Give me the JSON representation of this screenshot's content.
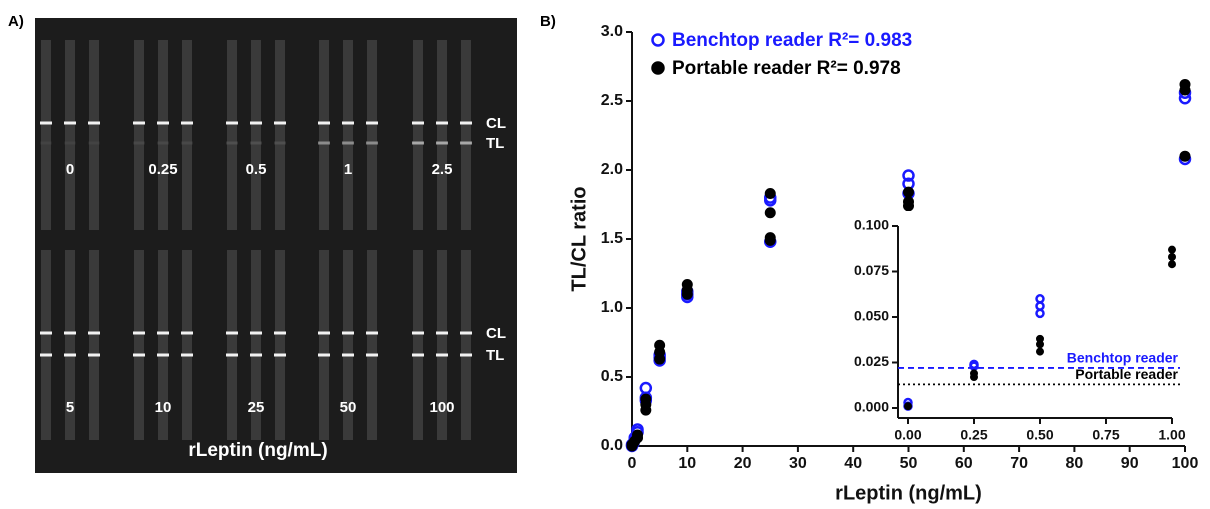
{
  "panel_a": {
    "label": "A)",
    "concentrations": [
      "0",
      "0.25",
      "0.5",
      "1",
      "2.5",
      "5",
      "10",
      "25",
      "50",
      "100"
    ],
    "line_labels": [
      [
        "CL",
        "TL"
      ],
      [
        "CL",
        "TL"
      ]
    ],
    "axis_label": "rLeptin  (ng/mL)"
  },
  "panel_b_label": "B)",
  "chart_data": [
    {
      "type": "scatter",
      "xlabel": "rLeptin (ng/mL)",
      "ylabel": "TL/CL ratio",
      "xlim": [
        0,
        100
      ],
      "xticks": [
        0,
        10,
        20,
        30,
        40,
        50,
        60,
        70,
        80,
        90,
        100
      ],
      "ylim": [
        0,
        3
      ],
      "yticks": [
        {
          "value": 0,
          "label": "0.0"
        },
        0.5,
        {
          "value": 1,
          "label": "1.0"
        },
        1.5,
        {
          "value": 2,
          "label": "2.0"
        },
        2.5,
        {
          "value": 3,
          "label": "3.0"
        }
      ],
      "legend": "upper left",
      "series": [
        {
          "name": "Benchtop reader R²= 0.983",
          "color": "#1a1aff",
          "marker": "open",
          "x": [
            0,
            0,
            0.25,
            0.5,
            0.5,
            1,
            1,
            2.5,
            2.5,
            2.5,
            5,
            5,
            5,
            10,
            10,
            10,
            25,
            25,
            25,
            50,
            50,
            50,
            100,
            100,
            100
          ],
          "values": [
            0,
            0.01,
            0.02,
            0.06,
            0.05,
            0.1,
            0.12,
            0.42,
            0.35,
            0.33,
            0.66,
            0.64,
            0.62,
            1.1,
            1.08,
            1.12,
            1.8,
            1.78,
            1.48,
            1.96,
            1.9,
            1.83,
            2.56,
            2.52,
            2.08
          ]
        },
        {
          "name": "Portable reader R²= 0.978",
          "color": "#000000",
          "marker": "filled",
          "x": [
            0,
            0,
            0.25,
            0.5,
            1,
            1,
            2.5,
            2.5,
            2.5,
            5,
            5,
            5,
            10,
            10,
            10,
            25,
            25,
            25,
            25,
            50,
            50,
            50,
            100,
            100,
            100
          ],
          "values": [
            0,
            0.01,
            0.02,
            0.035,
            0.08,
            0.06,
            0.34,
            0.3,
            0.26,
            0.73,
            0.68,
            0.63,
            1.17,
            1.13,
            1.1,
            1.83,
            1.69,
            1.51,
            1.49,
            1.84,
            1.77,
            1.74,
            2.62,
            2.58,
            2.1
          ]
        }
      ]
    },
    {
      "type": "scatter",
      "xlim": [
        0,
        1
      ],
      "xticks": [
        {
          "value": 0,
          "label": "0.00"
        },
        0.25,
        {
          "value": 0.5,
          "label": "0.50"
        },
        0.75,
        {
          "value": 1,
          "label": "1.00"
        }
      ],
      "ylim": [
        0,
        0.1
      ],
      "yticks": [
        {
          "value": 0,
          "label": "0.000"
        },
        0.025,
        {
          "value": 0.05,
          "label": "0.050"
        },
        0.075,
        {
          "value": 0.1,
          "label": "0.100"
        }
      ],
      "series": [
        {
          "color": "#1a1aff",
          "marker": "open",
          "x": [
            0,
            0,
            0.25,
            0.25,
            0.5,
            0.5,
            0.5
          ],
          "values": [
            0.003,
            0.001,
            0.024,
            0.023,
            0.06,
            0.056,
            0.052
          ]
        },
        {
          "color": "#000000",
          "marker": "filled",
          "x": [
            0,
            0.25,
            0.25,
            0.5,
            0.5,
            0.5,
            1,
            1,
            1
          ],
          "values": [
            0.001,
            0.019,
            0.017,
            0.038,
            0.035,
            0.031,
            0.087,
            0.083,
            0.079
          ]
        }
      ],
      "lines": [
        {
          "label": "Benchtop reader",
          "value": 0.022,
          "color": "#1a1aff",
          "style": "dashed"
        },
        {
          "label": "Portable reader",
          "value": 0.013,
          "color": "#000000",
          "style": "dotted"
        }
      ]
    }
  ]
}
